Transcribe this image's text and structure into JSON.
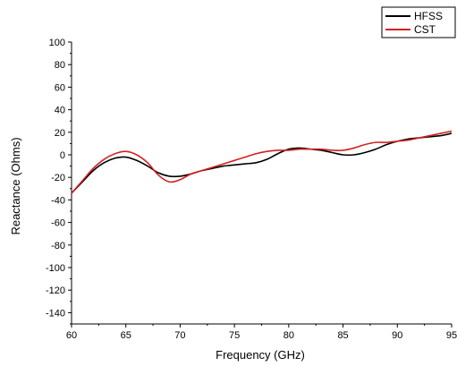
{
  "chart_data": {
    "type": "line",
    "xlabel": "Frequency (GHz)",
    "ylabel": "Reactance (Ohms)",
    "xlim": [
      60,
      95
    ],
    "ylim": [
      -150,
      100
    ],
    "xticks": [
      60,
      65,
      70,
      75,
      80,
      85,
      90,
      95
    ],
    "yticks": [
      100,
      80,
      60,
      40,
      20,
      0,
      -20,
      -40,
      -60,
      -80,
      -100,
      -120,
      -140
    ],
    "grid": false,
    "legend": "top-right",
    "series": [
      {
        "name": "HFSS",
        "color": "#000000",
        "x": [
          60,
          61,
          62,
          63,
          64,
          65,
          66,
          67,
          68,
          69,
          70,
          71,
          72,
          73,
          74,
          75,
          76,
          77,
          78,
          79,
          80,
          81,
          82,
          83,
          84,
          85,
          86,
          87,
          88,
          89,
          90,
          91,
          92,
          93,
          94,
          95
        ],
        "y": [
          -34,
          -24,
          -14,
          -7,
          -3,
          -2,
          -5,
          -10,
          -16,
          -19,
          -19,
          -17,
          -14,
          -12,
          -10,
          -9,
          -8,
          -7,
          -4,
          1,
          5,
          6,
          5,
          4,
          2,
          0,
          0,
          2,
          5,
          9,
          12,
          14,
          15,
          16,
          17,
          19
        ]
      },
      {
        "name": "CST",
        "color": "#d42020",
        "x": [
          60,
          61,
          62,
          63,
          64,
          65,
          66,
          67,
          68,
          69,
          70,
          71,
          72,
          73,
          74,
          75,
          76,
          77,
          78,
          79,
          80,
          81,
          82,
          83,
          84,
          85,
          86,
          87,
          88,
          89,
          90,
          91,
          92,
          93,
          94,
          95
        ],
        "y": [
          -34,
          -23,
          -12,
          -4,
          1,
          3,
          0,
          -7,
          -18,
          -24,
          -22,
          -17,
          -14,
          -11,
          -8,
          -5,
          -2,
          1,
          3,
          4,
          4,
          5,
          5,
          5,
          4,
          4,
          6,
          9,
          11,
          11,
          12,
          13,
          15,
          17,
          19,
          21
        ]
      }
    ]
  }
}
